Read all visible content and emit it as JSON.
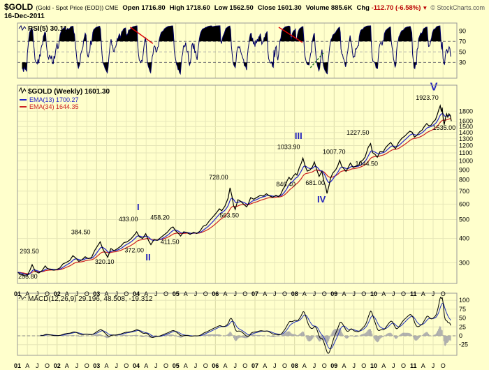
{
  "header": {
    "symbol": "$GOLD",
    "description": "(Gold - Spot Price (EOD)) CME",
    "date": "16-Dec-2011",
    "copyright": "© StockCharts.com",
    "change_direction": "▼",
    "quote": [
      {
        "label": "Open",
        "value": "1716.80"
      },
      {
        "label": "High",
        "value": "1718.60"
      },
      {
        "label": "Low",
        "value": "1562.50"
      },
      {
        "label": "Close",
        "value": "1601.30"
      },
      {
        "label": "Volume",
        "value": "885.6K"
      },
      {
        "label": "Chg",
        "value": "-112.70 (-6.58%)"
      }
    ]
  },
  "colors": {
    "background": "#FFFFCC",
    "grid": "#E6E6B8",
    "grid_year": "#D8D8A4",
    "border": "#999999",
    "price_line": "#000000",
    "ema_fast": "#2222CC",
    "ema_slow": "#CC2222",
    "rsi_line": "#000066",
    "macd_line": "#000000",
    "macd_signal": "#2233BB",
    "histogram": "#AAAAAA",
    "wave": "#2222BB",
    "trendline": "#DD0000",
    "negative": "#BB0000"
  },
  "chart_data": {
    "type": "line",
    "title": "$GOLD (Weekly)",
    "x_domain": [
      2001.0,
      2012.1
    ],
    "x_labels": [
      "01",
      "A",
      "J",
      "O",
      "02",
      "A",
      "J",
      "O",
      "03",
      "A",
      "J",
      "O",
      "04",
      "A",
      "J",
      "O",
      "05",
      "A",
      "J",
      "O",
      "06",
      "A",
      "J",
      "O",
      "07",
      "A",
      "J",
      "O",
      "08",
      "A",
      "J",
      "O",
      "09",
      "A",
      "J",
      "O",
      "10",
      "A",
      "J",
      "O",
      "11",
      "A",
      "J",
      "O"
    ],
    "panels": {
      "rsi": {
        "label": "RSI(5) 30.11",
        "indicator": "RSI",
        "period": 5,
        "value": 30.11,
        "y_domain": [
          0,
          105
        ],
        "y_ticks": [
          90,
          70,
          50,
          30
        ],
        "dashed_levels": [
          70,
          50,
          30
        ],
        "trendlines": [
          {
            "x1": 2003.85,
            "y1": 97,
            "x2": 2004.42,
            "y2": 66
          },
          {
            "x1": 2007.6,
            "y1": 97,
            "x2": 2008.2,
            "y2": 68
          },
          {
            "x1": 2008.4,
            "y1": 20,
            "x2": 2008.75,
            "y2": 50,
            "color": "#227722",
            "dash": true
          }
        ]
      },
      "price": {
        "label": "$GOLD (Weekly) 1601.30",
        "last": 1601.3,
        "scale": "log",
        "y_domain": [
          235,
          2450
        ],
        "y_ticks": [
          1800,
          1600,
          1500,
          1400,
          1300,
          1200,
          1100,
          1000,
          900,
          800,
          700,
          600,
          500,
          400,
          300
        ],
        "overlays": [
          {
            "label": "EMA(13) 1700.27",
            "period": 13,
            "value": 1700.27
          },
          {
            "label": "EMA(34) 1644.35",
            "period": 34,
            "value": 1644.35
          }
        ],
        "points": [
          [
            2001.0,
            268
          ],
          [
            2001.08,
            262
          ],
          [
            2001.17,
            258
          ],
          [
            2001.24,
            255.8
          ],
          [
            2001.32,
            276
          ],
          [
            2001.37,
            293.5
          ],
          [
            2001.45,
            271
          ],
          [
            2001.54,
            266
          ],
          [
            2001.62,
            273
          ],
          [
            2001.7,
            289
          ],
          [
            2001.75,
            281
          ],
          [
            2001.83,
            277
          ],
          [
            2001.92,
            275
          ],
          [
            2001.99,
            277
          ],
          [
            2002.07,
            282
          ],
          [
            2002.15,
            296
          ],
          [
            2002.23,
            301
          ],
          [
            2002.32,
            308
          ],
          [
            2002.4,
            326
          ],
          [
            2002.47,
            318
          ],
          [
            2002.55,
            305
          ],
          [
            2002.63,
            311
          ],
          [
            2002.71,
            322
          ],
          [
            2002.79,
            315
          ],
          [
            2002.87,
            319
          ],
          [
            2002.95,
            347
          ],
          [
            2003.03,
            368
          ],
          [
            2003.09,
            384.5
          ],
          [
            2003.16,
            352
          ],
          [
            2003.22,
            336
          ],
          [
            2003.28,
            320.1
          ],
          [
            2003.36,
            355
          ],
          [
            2003.44,
            346
          ],
          [
            2003.52,
            354
          ],
          [
            2003.61,
            365
          ],
          [
            2003.69,
            381
          ],
          [
            2003.77,
            384
          ],
          [
            2003.86,
            397
          ],
          [
            2003.95,
            416
          ],
          [
            2004.01,
            433
          ],
          [
            2004.08,
            408
          ],
          [
            2004.16,
            400
          ],
          [
            2004.24,
            423
          ],
          [
            2004.31,
            390
          ],
          [
            2004.37,
            372
          ],
          [
            2004.45,
            395
          ],
          [
            2004.53,
            391
          ],
          [
            2004.61,
            403
          ],
          [
            2004.7,
            417
          ],
          [
            2004.78,
            429
          ],
          [
            2004.87,
            451
          ],
          [
            2004.93,
            458.2
          ],
          [
            2005.0,
            437
          ],
          [
            2005.07,
            424
          ],
          [
            2005.12,
            411.5
          ],
          [
            2005.2,
            433
          ],
          [
            2005.28,
            429
          ],
          [
            2005.36,
            420
          ],
          [
            2005.45,
            430
          ],
          [
            2005.53,
            424
          ],
          [
            2005.61,
            436
          ],
          [
            2005.69,
            462
          ],
          [
            2005.77,
            469
          ],
          [
            2005.85,
            493
          ],
          [
            2005.94,
            517
          ],
          [
            2006.02,
            540
          ],
          [
            2006.1,
            568
          ],
          [
            2006.16,
            555
          ],
          [
            2006.24,
            585
          ],
          [
            2006.32,
            644
          ],
          [
            2006.37,
            728
          ],
          [
            2006.42,
            658
          ],
          [
            2006.46,
            590
          ],
          [
            2006.5,
            563.5
          ],
          [
            2006.57,
            632
          ],
          [
            2006.64,
            621
          ],
          [
            2006.72,
            598
          ],
          [
            2006.79,
            581
          ],
          [
            2006.83,
            601
          ],
          [
            2006.89,
            648
          ],
          [
            2006.97,
            636
          ],
          [
            2007.05,
            650
          ],
          [
            2007.13,
            665
          ],
          [
            2007.21,
            660
          ],
          [
            2007.29,
            678
          ],
          [
            2007.37,
            661
          ],
          [
            2007.45,
            651
          ],
          [
            2007.53,
            666
          ],
          [
            2007.59,
            655
          ],
          [
            2007.65,
            673
          ],
          [
            2007.71,
            717
          ],
          [
            2007.76,
            745
          ],
          [
            2007.81,
            790
          ],
          [
            2007.86,
            824
          ],
          [
            2007.91,
            800
          ],
          [
            2007.97,
            838
          ],
          [
            2008.03,
            862
          ],
          [
            2008.06,
            846.4
          ],
          [
            2008.12,
            925
          ],
          [
            2008.17,
            974
          ],
          [
            2008.21,
            1033.9
          ],
          [
            2008.27,
            938
          ],
          [
            2008.32,
            887
          ],
          [
            2008.39,
            899
          ],
          [
            2008.45,
            932
          ],
          [
            2008.5,
            988
          ],
          [
            2008.55,
            916
          ],
          [
            2008.62,
            833
          ],
          [
            2008.69,
            884
          ],
          [
            2008.74,
            787
          ],
          [
            2008.79,
            732
          ],
          [
            2008.82,
            681
          ],
          [
            2008.87,
            748
          ],
          [
            2008.91,
            816
          ],
          [
            2008.97,
            869
          ],
          [
            2009.04,
            902
          ],
          [
            2009.09,
            943
          ],
          [
            2009.14,
            1007.7
          ],
          [
            2009.19,
            940
          ],
          [
            2009.24,
            916
          ],
          [
            2009.3,
            884
          ],
          [
            2009.36,
            930
          ],
          [
            2009.41,
            975
          ],
          [
            2009.48,
            927
          ],
          [
            2009.55,
            940
          ],
          [
            2009.62,
            953
          ],
          [
            2009.67,
            994
          ],
          [
            2009.72,
            1008
          ],
          [
            2009.78,
            1044
          ],
          [
            2009.86,
            1175
          ],
          [
            2009.92,
            1227.5
          ],
          [
            2009.97,
            1104
          ],
          [
            2010.03,
            1083
          ],
          [
            2010.09,
            1044.5
          ],
          [
            2010.16,
            1118
          ],
          [
            2010.24,
            1113
          ],
          [
            2010.3,
            1170
          ],
          [
            2010.37,
            1214
          ],
          [
            2010.43,
            1244
          ],
          [
            2010.5,
            1185
          ],
          [
            2010.55,
            1157
          ],
          [
            2010.63,
            1246
          ],
          [
            2010.71,
            1307
          ],
          [
            2010.79,
            1346
          ],
          [
            2010.85,
            1386
          ],
          [
            2010.91,
            1421
          ],
          [
            2010.97,
            1405
          ],
          [
            2011.03,
            1327
          ],
          [
            2011.09,
            1356
          ],
          [
            2011.16,
            1411
          ],
          [
            2011.22,
            1439
          ],
          [
            2011.28,
            1506
          ],
          [
            2011.34,
            1556
          ],
          [
            2011.39,
            1515
          ],
          [
            2011.45,
            1528
          ],
          [
            2011.51,
            1594
          ],
          [
            2011.56,
            1628
          ],
          [
            2011.61,
            1740
          ],
          [
            2011.65,
            1852
          ],
          [
            2011.68,
            1923.7
          ],
          [
            2011.71,
            1788
          ],
          [
            2011.73,
            1880
          ],
          [
            2011.76,
            1620
          ],
          [
            2011.78,
            1535
          ],
          [
            2011.81,
            1655
          ],
          [
            2011.84,
            1747
          ],
          [
            2011.87,
            1680
          ],
          [
            2011.9,
            1746
          ],
          [
            2011.93,
            1716
          ],
          [
            2011.96,
            1601.3
          ]
        ],
        "annotations": [
          {
            "text": "293.50",
            "x": 2001.3,
            "y": 335
          },
          {
            "text": "255.80",
            "x": 2001.02,
            "y": 249,
            "anchor": "start"
          },
          {
            "text": "384.50",
            "x": 2002.6,
            "y": 420
          },
          {
            "text": "320.10",
            "x": 2003.2,
            "y": 296
          },
          {
            "text": "433.00",
            "x": 2003.8,
            "y": 490
          },
          {
            "text": "I",
            "x": 2004.05,
            "y": 560,
            "wave": true
          },
          {
            "text": "372.00",
            "x": 2003.95,
            "y": 340
          },
          {
            "text": "II",
            "x": 2004.3,
            "y": 308,
            "wave": true
          },
          {
            "text": "458.20",
            "x": 2004.6,
            "y": 500
          },
          {
            "text": "411.50",
            "x": 2004.85,
            "y": 375
          },
          {
            "text": "728.00",
            "x": 2006.08,
            "y": 805
          },
          {
            "text": "563.50",
            "x": 2006.35,
            "y": 512
          },
          {
            "text": "846.40",
            "x": 2007.78,
            "y": 740
          },
          {
            "text": "1033.90",
            "x": 2007.85,
            "y": 1150
          },
          {
            "text": "III",
            "x": 2008.1,
            "y": 1300,
            "wave": true
          },
          {
            "text": "681.00",
            "x": 2008.52,
            "y": 752
          },
          {
            "text": "IV",
            "x": 2008.68,
            "y": 612,
            "wave": true
          },
          {
            "text": "1007.70",
            "x": 2009.0,
            "y": 1085
          },
          {
            "text": "1227.50",
            "x": 2009.6,
            "y": 1365
          },
          {
            "text": "1044.50",
            "x": 2009.82,
            "y": 945
          },
          {
            "text": "1923.70",
            "x": 2011.35,
            "y": 2060
          },
          {
            "text": "V",
            "x": 2011.52,
            "y": 2300,
            "wave": true,
            "big": true
          },
          {
            "text": "1535.00",
            "x": 2011.78,
            "y": 1445
          }
        ]
      },
      "macd": {
        "label": "MACD(12,26,9) 29.196, 48.508, -19.312",
        "params": [
          12,
          26,
          9
        ],
        "values": [
          29.196,
          48.508,
          -19.312
        ],
        "y_domain": [
          -55,
          120
        ],
        "y_ticks": [
          100,
          75,
          50,
          25,
          0,
          -25
        ],
        "zero_line": 0
      }
    }
  }
}
